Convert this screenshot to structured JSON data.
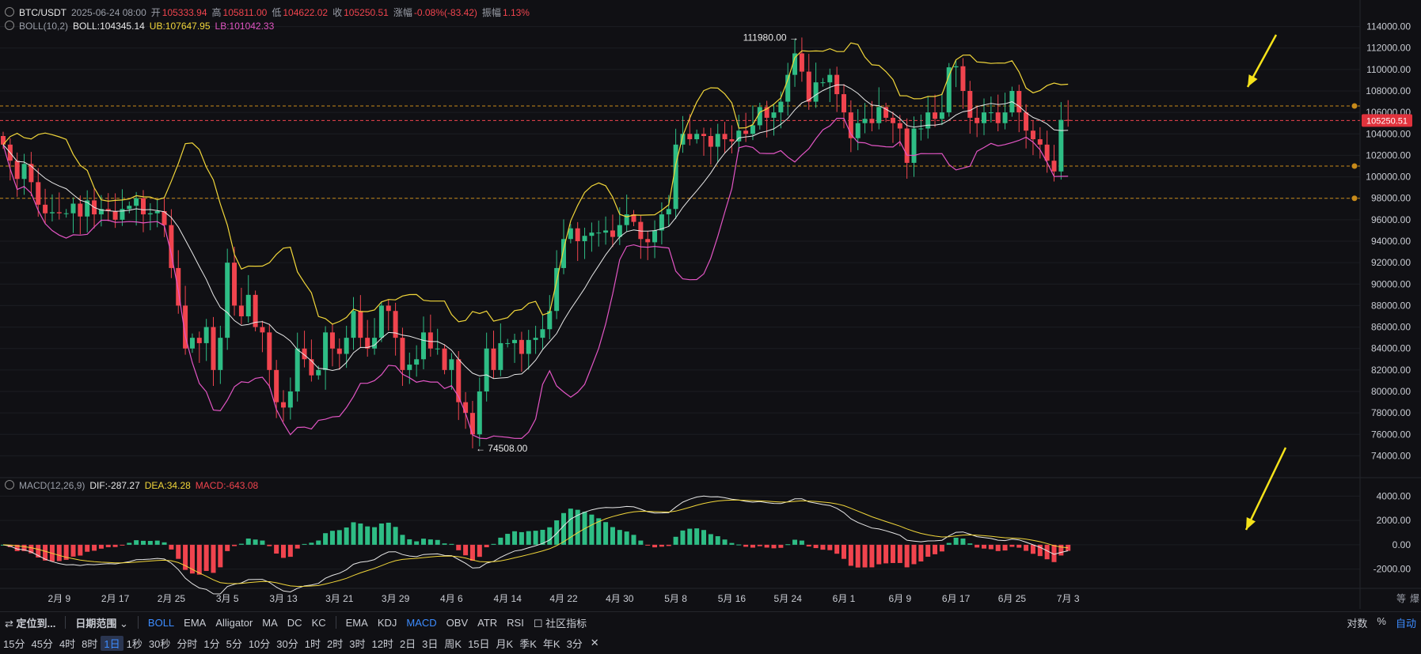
{
  "header": {
    "symbol": "BTC/USDT",
    "datetime": "2025-06-24 08:00",
    "open_label": "开",
    "open": "105333.94",
    "high_label": "高",
    "high": "105811.00",
    "low_label": "低",
    "low": "104622.02",
    "close_label": "收",
    "close": "105250.51",
    "change_label": "涨幅",
    "change": "-0.08%(-83.42)",
    "amp_label": "振幅",
    "amp": "1.13%"
  },
  "boll": {
    "label": "BOLL(10,2)",
    "mid": "BOLL:104345.14",
    "ub": "UB:107647.95",
    "lb": "LB:101042.33"
  },
  "macd": {
    "label": "MACD(12,26,9)",
    "dif": "DIF:-287.27",
    "dea": "DEA:34.28",
    "macd": "MACD:-643.08"
  },
  "toolbar1": {
    "locate": "定位到...",
    "date_range": "日期范围",
    "main_indicators": [
      "BOLL",
      "EMA",
      "Alligator",
      "MA",
      "DC",
      "KC"
    ],
    "sub_indicators": [
      "EMA",
      "KDJ",
      "MACD",
      "OBV",
      "ATR",
      "RSI"
    ],
    "community": "社区指标",
    "right": [
      "对数",
      "%",
      "自动"
    ],
    "active_main": "BOLL",
    "active_sub": "MACD"
  },
  "timeframes": [
    "15分",
    "45分",
    "4时",
    "8时",
    "1日",
    "1秒",
    "30秒",
    "分时",
    "1分",
    "5分",
    "10分",
    "30分",
    "1时",
    "2时",
    "3时",
    "12时",
    "2日",
    "3日",
    "周K",
    "15日",
    "月K",
    "季K",
    "年K",
    "3分"
  ],
  "timeframe_active": "1日",
  "colors": {
    "bg": "#101014",
    "up": "#2ebd85",
    "down": "#f0444e",
    "ub": "#f1d63a",
    "lb": "#e255c4",
    "mid": "#e8e8e8",
    "dif": "#e8e8e8",
    "dea": "#f1d63a",
    "arrow": "#f5e21a",
    "accent": "#3d8cff"
  },
  "chart_data": {
    "type": "candlestick",
    "price_axis_ticks": [
      "114000.00",
      "112000.00",
      "110000.00",
      "108000.00",
      "106000.00",
      "104000.00",
      "102000.00",
      "100000.00",
      "98000.00",
      "96000.00",
      "94000.00",
      "92000.00",
      "90000.00",
      "88000.00",
      "86000.00",
      "84000.00",
      "82000.00",
      "80000.00",
      "78000.00",
      "76000.00",
      "74000.00"
    ],
    "macd_axis_ticks": [
      "4000.00",
      "2000.00",
      "0.00",
      "-2000.00"
    ],
    "x_axis_ticks": [
      "2月 9",
      "2月 17",
      "2月 25",
      "3月 5",
      "3月 13",
      "3月 21",
      "3月 29",
      "4月 6",
      "4月 14",
      "4月 22",
      "4月 30",
      "5月 8",
      "5月 16",
      "5月 24",
      "6月 1",
      "6月 9",
      "6月 17",
      "6月 25",
      "7月 3"
    ],
    "current_price_label": "105250.51",
    "high_marker": "111980.00",
    "low_marker": "74508.00",
    "ylim": [
      73000,
      115000
    ],
    "macd_ylim": [
      -3000,
      5000
    ],
    "horizontal_levels": [
      106600,
      105250.51,
      101000,
      98000
    ],
    "close_series": [
      103000,
      101500,
      99800,
      101200,
      99500,
      97400,
      96600,
      96700,
      96600,
      96600,
      97500,
      96300,
      97800,
      96500,
      97000,
      96800,
      96000,
      97000,
      97300,
      98000,
      96500,
      96600,
      96800,
      95500,
      91500,
      88000,
      84000,
      85000,
      84500,
      86000,
      82000,
      85000,
      92000,
      88000,
      87000,
      89000,
      86000,
      85500,
      82000,
      79000,
      78500,
      80000,
      84000,
      83000,
      81500,
      82000,
      85500,
      84000,
      83500,
      85000,
      87500,
      85000,
      84000,
      85000,
      88000,
      87500,
      85000,
      82000,
      82500,
      83000,
      85500,
      84000,
      84000,
      82000,
      83000,
      79000,
      78000,
      76000,
      80000,
      84000,
      82000,
      84500,
      84500,
      84800,
      83500,
      84800,
      85000,
      85800,
      87500,
      91500,
      94200,
      95200,
      94000,
      94500,
      94800,
      94800,
      95000,
      94400,
      95500,
      96500,
      95800,
      94200,
      93900,
      95000,
      96500,
      97000,
      103000,
      104000,
      103500,
      104000,
      103800,
      102800,
      104000,
      103500,
      103300,
      104300,
      104000,
      104800,
      106500,
      105500,
      106000,
      107000,
      109500,
      111500,
      109800,
      107000,
      108800,
      108800,
      109500,
      107700,
      106000,
      103600,
      105000,
      105400,
      105000,
      106500,
      105500,
      105000,
      104500,
      101300,
      104500,
      104500,
      106000,
      105400,
      106000,
      110200,
      110300,
      108000,
      105500,
      105000,
      106000,
      106000,
      105000,
      106000,
      108000,
      106000,
      104300,
      103500,
      103000,
      101500,
      100500,
      105300,
      105250
    ]
  }
}
